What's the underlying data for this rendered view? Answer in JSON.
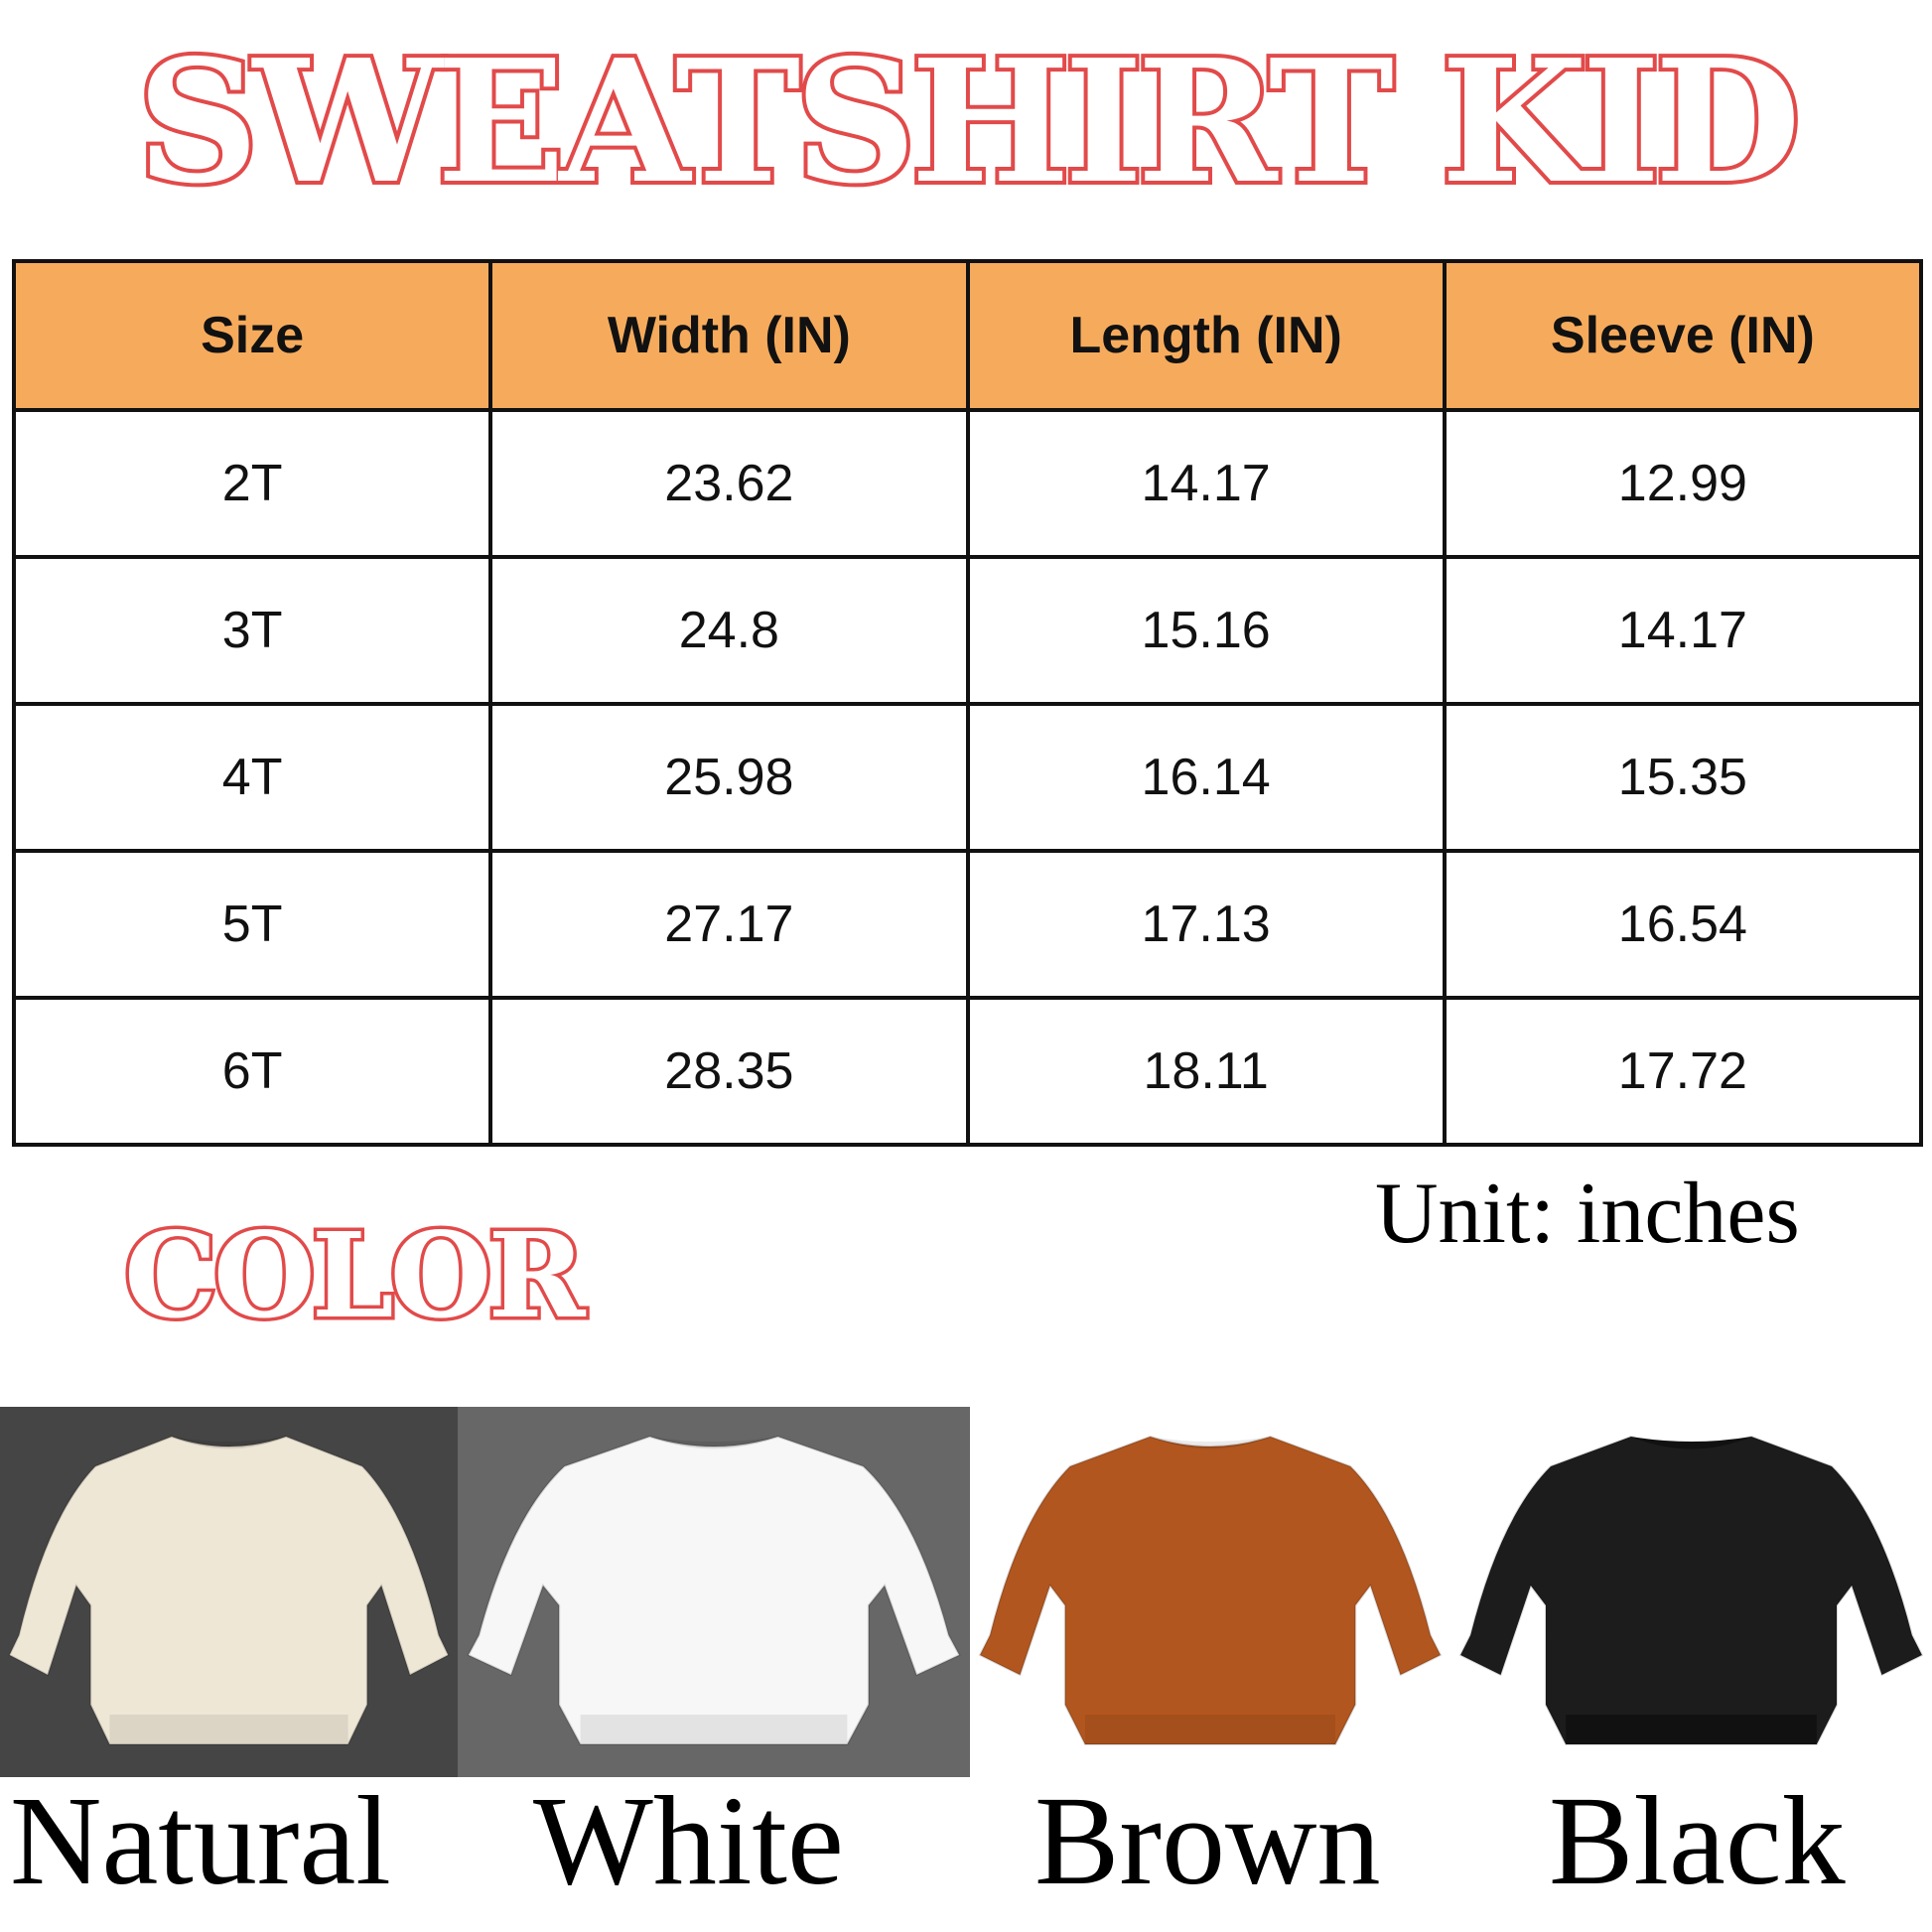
{
  "title": "SWEATSHIRT KID",
  "table": {
    "headers": [
      "Size",
      "Width (IN)",
      "Length (IN)",
      "Sleeve (IN)"
    ],
    "rows": [
      [
        "2T",
        "23.62",
        "14.17",
        "12.99"
      ],
      [
        "3T",
        "24.8",
        "15.16",
        "14.17"
      ],
      [
        "4T",
        "25.98",
        "16.14",
        "15.35"
      ],
      [
        "5T",
        "27.17",
        "17.13",
        "16.54"
      ],
      [
        "6T",
        "28.35",
        "18.11",
        "17.72"
      ]
    ],
    "header_color": "#f6ab5c"
  },
  "unit_note": "Unit: inches",
  "color_heading": "COLOR",
  "colors": [
    {
      "label": "Natural",
      "swatch": "#efe7d6",
      "background": "#454545"
    },
    {
      "label": "White",
      "swatch": "#f7f7f7",
      "background": "#676767"
    },
    {
      "label": "Brown",
      "swatch": "#b2561f",
      "background": "#ffffff"
    },
    {
      "label": "Black",
      "swatch": "#1c1c1c",
      "background": "#ffffff"
    }
  ]
}
